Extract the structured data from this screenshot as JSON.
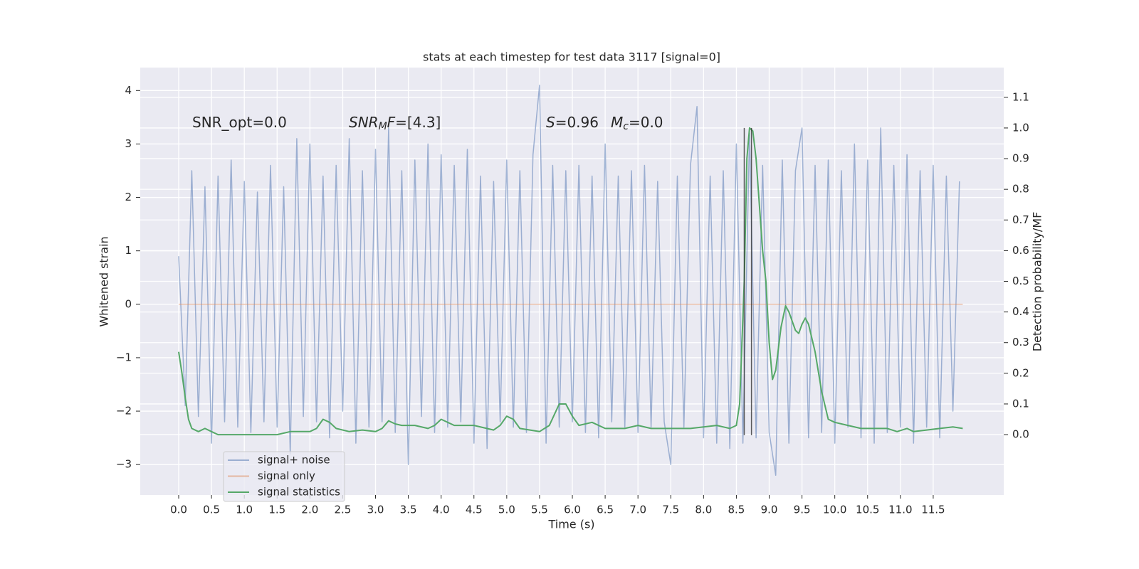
{
  "chart_data": {
    "type": "line",
    "title": "stats at each timestep for test data 3117 [signal=0]",
    "xlabel": "Time (s)",
    "ylabel": "Whitened strain",
    "y2label": "Detection probability/MF",
    "xlim": [
      -0.586,
      12.575
    ],
    "ylim": [
      -3.57,
      4.43
    ],
    "y2lim": [
      -0.197,
      1.197
    ],
    "xticks": [
      {
        "value": 0,
        "label": "0.0"
      },
      {
        "value": 0.5,
        "label": "0.5"
      },
      {
        "value": 1,
        "label": "1.0"
      },
      {
        "value": 1.5,
        "label": "1.5"
      },
      {
        "value": 2,
        "label": "2.0"
      },
      {
        "value": 2.5,
        "label": "2.5"
      },
      {
        "value": 3,
        "label": "3.0"
      },
      {
        "value": 3.5,
        "label": "3.5"
      },
      {
        "value": 4,
        "label": "4.0"
      },
      {
        "value": 4.5,
        "label": "4.5"
      },
      {
        "value": 5,
        "label": "5.0"
      },
      {
        "value": 5.5,
        "label": "5.5"
      },
      {
        "value": 6,
        "label": "6.0"
      },
      {
        "value": 6.5,
        "label": "6.5"
      },
      {
        "value": 7,
        "label": "7.0"
      },
      {
        "value": 7.5,
        "label": "7.5"
      },
      {
        "value": 8,
        "label": "8.0"
      },
      {
        "value": 8.5,
        "label": "8.5"
      },
      {
        "value": 9,
        "label": "9.0"
      },
      {
        "value": 9.5,
        "label": "9.5"
      },
      {
        "value": 10,
        "label": "10.0"
      },
      {
        "value": 10.5,
        "label": "10.5"
      },
      {
        "value": 11,
        "label": "11.0"
      },
      {
        "value": 11.5,
        "label": "11.5"
      }
    ],
    "yticks": [
      {
        "value": -3,
        "label": "−3"
      },
      {
        "value": -2,
        "label": "−2"
      },
      {
        "value": -1,
        "label": "−1"
      },
      0,
      1,
      2,
      3,
      4
    ],
    "y2ticks": [
      {
        "value": 0,
        "label": "0.0"
      },
      {
        "value": 0.1,
        "label": "0.1"
      },
      {
        "value": 0.2,
        "label": "0.2"
      },
      {
        "value": 0.3,
        "label": "0.3"
      },
      {
        "value": 0.4,
        "label": "0.4"
      },
      {
        "value": 0.5,
        "label": "0.5"
      },
      {
        "value": 0.6,
        "label": "0.6"
      },
      {
        "value": 0.7,
        "label": "0.7"
      },
      {
        "value": 0.8,
        "label": "0.8"
      },
      {
        "value": 0.9,
        "label": "0.9"
      },
      {
        "value": 1,
        "label": "1.0"
      },
      {
        "value": 1.1,
        "label": "1.1"
      }
    ],
    "grid": true,
    "legend": "lower left",
    "series": [
      {
        "name": "signal+ noise",
        "color": "#4c72b0",
        "opacity": 0.5,
        "x": [
          0.0,
          0.1,
          0.2,
          0.3,
          0.4,
          0.5,
          0.6,
          0.7,
          0.8,
          0.9,
          1.0,
          1.1,
          1.2,
          1.3,
          1.4,
          1.5,
          1.6,
          1.7,
          1.8,
          1.9,
          2.0,
          2.1,
          2.2,
          2.3,
          2.4,
          2.5,
          2.6,
          2.7,
          2.8,
          2.9,
          3.0,
          3.1,
          3.2,
          3.3,
          3.4,
          3.5,
          3.6,
          3.7,
          3.8,
          3.9,
          4.0,
          4.1,
          4.2,
          4.3,
          4.4,
          4.5,
          4.6,
          4.7,
          4.8,
          4.9,
          5.0,
          5.1,
          5.2,
          5.3,
          5.4,
          5.5,
          5.6,
          5.7,
          5.8,
          5.9,
          6.0,
          6.1,
          6.2,
          6.3,
          6.4,
          6.5,
          6.6,
          6.7,
          6.8,
          6.9,
          7.0,
          7.1,
          7.2,
          7.3,
          7.4,
          7.5,
          7.6,
          7.7,
          7.8,
          7.9,
          8.0,
          8.1,
          8.2,
          8.3,
          8.4,
          8.5,
          8.6,
          8.7,
          8.8,
          8.9,
          9.0,
          9.1,
          9.2,
          9.3,
          9.4,
          9.5,
          9.6,
          9.7,
          9.8,
          9.9,
          10.0,
          10.1,
          10.2,
          10.3,
          10.4,
          10.5,
          10.6,
          10.7,
          10.8,
          10.9,
          11.0,
          11.1,
          11.2,
          11.3,
          11.4,
          11.5,
          11.6,
          11.7,
          11.8,
          11.9
        ],
        "values": [
          0.9,
          -1.9,
          2.5,
          -2.1,
          2.2,
          -2.6,
          2.4,
          -2.2,
          2.7,
          -2.3,
          2.3,
          -2.4,
          2.1,
          -2.2,
          2.6,
          -2.3,
          2.2,
          -2.8,
          3.1,
          -2.1,
          3.0,
          -2.2,
          2.4,
          -2.5,
          2.6,
          -2.0,
          3.1,
          -2.6,
          2.5,
          -2.3,
          2.9,
          -2.2,
          3.3,
          -2.4,
          2.5,
          -3.0,
          2.7,
          -2.1,
          3.0,
          -2.4,
          2.8,
          -2.3,
          2.6,
          -2.2,
          2.9,
          -2.6,
          2.4,
          -2.7,
          2.3,
          -2.2,
          2.7,
          -2.3,
          2.5,
          -2.4,
          2.8,
          4.1,
          -2.6,
          2.6,
          -2.3,
          2.5,
          -2.2,
          2.6,
          -2.4,
          2.4,
          -2.5,
          3.0,
          -2.2,
          2.4,
          -2.3,
          2.5,
          -2.4,
          2.6,
          -2.3,
          2.3,
          -2.2,
          -3.0,
          2.4,
          -2.3,
          2.6,
          3.7,
          -2.5,
          2.4,
          -2.6,
          2.5,
          -2.7,
          3.0,
          -2.6,
          3.2,
          -2.5,
          2.6,
          -2.4,
          -3.2,
          2.7,
          -2.6,
          2.5,
          3.3,
          -2.5,
          2.6,
          -2.4,
          2.7,
          -2.6,
          2.5,
          -2.3,
          3.0,
          -2.5,
          2.7,
          -2.6,
          3.3,
          -2.4,
          2.6,
          -2.3,
          2.8,
          -2.6,
          2.5,
          -2.3,
          2.6,
          -2.5,
          2.4,
          -2.0,
          2.3
        ]
      },
      {
        "name": "signal only",
        "color": "#dd8452",
        "opacity": 0.5,
        "x": [
          0.0,
          11.95
        ],
        "values": [
          0,
          0
        ]
      },
      {
        "name": "signal statistics",
        "color": "#55a868",
        "opacity": 1,
        "axis": "y2",
        "x": [
          0.0,
          0.05,
          0.1,
          0.15,
          0.2,
          0.3,
          0.4,
          0.5,
          0.6,
          0.8,
          1.0,
          1.2,
          1.5,
          1.7,
          2.0,
          2.1,
          2.2,
          2.3,
          2.4,
          2.6,
          2.8,
          3.0,
          3.1,
          3.2,
          3.3,
          3.4,
          3.6,
          3.8,
          3.9,
          4.0,
          4.2,
          4.5,
          4.8,
          4.9,
          5.0,
          5.1,
          5.2,
          5.5,
          5.65,
          5.8,
          5.9,
          6.0,
          6.1,
          6.3,
          6.5,
          6.8,
          7.0,
          7.2,
          7.5,
          7.8,
          8.2,
          8.4,
          8.5,
          8.55,
          8.62,
          8.66,
          8.7,
          8.75,
          8.8,
          8.85,
          8.9,
          8.95,
          9.0,
          9.05,
          9.1,
          9.18,
          9.25,
          9.3,
          9.4,
          9.45,
          9.5,
          9.55,
          9.6,
          9.7,
          9.8,
          9.9,
          10.0,
          10.2,
          10.4,
          10.6,
          10.8,
          10.95,
          11.1,
          11.2,
          11.4,
          11.6,
          11.8,
          11.95
        ],
        "values": [
          0.27,
          0.2,
          0.12,
          0.05,
          0.02,
          0.01,
          0.02,
          0.01,
          0.0,
          0.0,
          0.0,
          0.0,
          0.0,
          0.01,
          0.01,
          0.02,
          0.05,
          0.04,
          0.02,
          0.01,
          0.015,
          0.01,
          0.02,
          0.045,
          0.035,
          0.03,
          0.03,
          0.02,
          0.03,
          0.05,
          0.03,
          0.03,
          0.015,
          0.03,
          0.06,
          0.05,
          0.02,
          0.01,
          0.03,
          0.1,
          0.1,
          0.06,
          0.03,
          0.04,
          0.02,
          0.02,
          0.03,
          0.02,
          0.02,
          0.02,
          0.03,
          0.02,
          0.03,
          0.1,
          0.5,
          0.9,
          1.0,
          0.99,
          0.9,
          0.75,
          0.6,
          0.5,
          0.3,
          0.18,
          0.21,
          0.35,
          0.42,
          0.4,
          0.34,
          0.33,
          0.36,
          0.38,
          0.36,
          0.27,
          0.14,
          0.05,
          0.04,
          0.03,
          0.02,
          0.02,
          0.02,
          0.01,
          0.02,
          0.01,
          0.015,
          0.02,
          0.025,
          0.02
        ]
      }
    ],
    "vlines": [
      {
        "x": 8.62,
        "y": [
          -2.45,
          3.3
        ]
      },
      {
        "x": 8.73,
        "y": [
          -2.45,
          3.3
        ]
      }
    ],
    "vline_color": "#333333",
    "annotations": [
      {
        "segments": [
          {
            "text": "SNR_opt=0.0"
          }
        ]
      },
      {
        "segments": [
          {
            "text": "SNR",
            "italic": true
          },
          {
            "text": "M",
            "italic": true,
            "sub": true
          },
          {
            "text": "F",
            "italic": true
          },
          {
            "text": "=[4.3]"
          }
        ]
      },
      {
        "segments": [
          {
            "text": "S",
            "italic": true
          },
          {
            "text": "=0.96"
          }
        ]
      },
      {
        "segments": [
          {
            "text": "M",
            "italic": true
          },
          {
            "text": "c",
            "italic": true,
            "sub": true
          },
          {
            "text": "=0.0"
          }
        ]
      }
    ]
  }
}
